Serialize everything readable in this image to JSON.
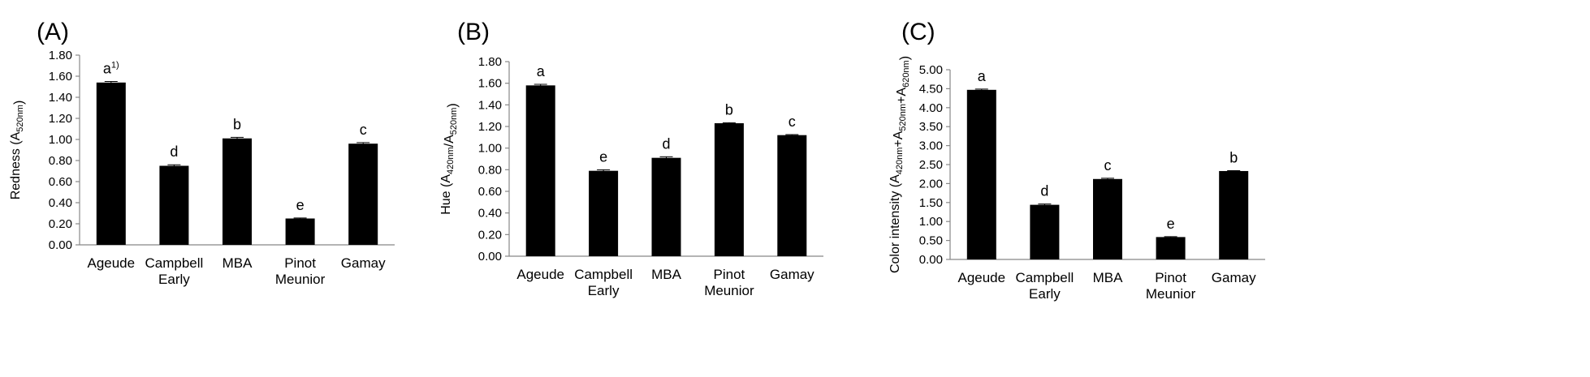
{
  "chart_data": [
    {
      "type": "bar",
      "panel": "(A)",
      "ylabel_parts": [
        {
          "text": "Redness (A",
          "sub": false
        },
        {
          "text": "520nm",
          "sub": true
        },
        {
          "text": ")",
          "sub": false
        }
      ],
      "categories": [
        [
          "Ageude"
        ],
        [
          "Campbell",
          "Early"
        ],
        [
          "MBA"
        ],
        [
          "Pinot",
          "Meunior"
        ],
        [
          "Gamay"
        ]
      ],
      "values": [
        1.54,
        0.75,
        1.01,
        0.25,
        0.96
      ],
      "errors": [
        0.01,
        0.01,
        0.01,
        0.005,
        0.01
      ],
      "sig": [
        "a",
        "d",
        "b",
        "e",
        "c"
      ],
      "sig_super": [
        "1)",
        "",
        "",
        "",
        ""
      ],
      "ylim": [
        0,
        1.8
      ],
      "ytick_step": 0.2,
      "ytick_decimals": 2,
      "grid": false
    },
    {
      "type": "bar",
      "panel": "(B)",
      "ylabel_parts": [
        {
          "text": "Hue (A",
          "sub": false
        },
        {
          "text": "420nm",
          "sub": true
        },
        {
          "text": "/A",
          "sub": false
        },
        {
          "text": "520nm",
          "sub": true
        },
        {
          "text": ")",
          "sub": false
        }
      ],
      "categories": [
        [
          "Ageude"
        ],
        [
          "Campbell",
          "Early"
        ],
        [
          "MBA"
        ],
        [
          "Pinot",
          "Meunior"
        ],
        [
          "Gamay"
        ]
      ],
      "values": [
        1.58,
        0.79,
        0.91,
        1.23,
        1.12
      ],
      "errors": [
        0.01,
        0.01,
        0.01,
        0.005,
        0.005
      ],
      "sig": [
        "a",
        "e",
        "d",
        "b",
        "c"
      ],
      "sig_super": [
        "",
        "",
        "",
        "",
        ""
      ],
      "ylim": [
        0,
        1.8
      ],
      "ytick_step": 0.2,
      "ytick_decimals": 2,
      "grid": false
    },
    {
      "type": "bar",
      "panel": "(C)",
      "ylabel_parts": [
        {
          "text": "Color intensity (A",
          "sub": false
        },
        {
          "text": "420nm",
          "sub": true
        },
        {
          "text": "+A",
          "sub": false
        },
        {
          "text": "520nm",
          "sub": true
        },
        {
          "text": "+A",
          "sub": false
        },
        {
          "text": "620nm",
          "sub": true
        },
        {
          "text": ")",
          "sub": false
        }
      ],
      "categories": [
        [
          "Ageude"
        ],
        [
          "Campbell",
          "Early"
        ],
        [
          "MBA"
        ],
        [
          "Pinot",
          "Meunior"
        ],
        [
          "Gamay"
        ]
      ],
      "values": [
        4.47,
        1.44,
        2.12,
        0.59,
        2.33
      ],
      "errors": [
        0.02,
        0.02,
        0.02,
        0.01,
        0.01
      ],
      "sig": [
        "a",
        "d",
        "c",
        "e",
        "b"
      ],
      "sig_super": [
        "",
        "",
        "",
        "",
        ""
      ],
      "ylim": [
        0,
        5.0
      ],
      "ytick_step": 0.5,
      "ytick_decimals": 2,
      "grid": false
    }
  ]
}
